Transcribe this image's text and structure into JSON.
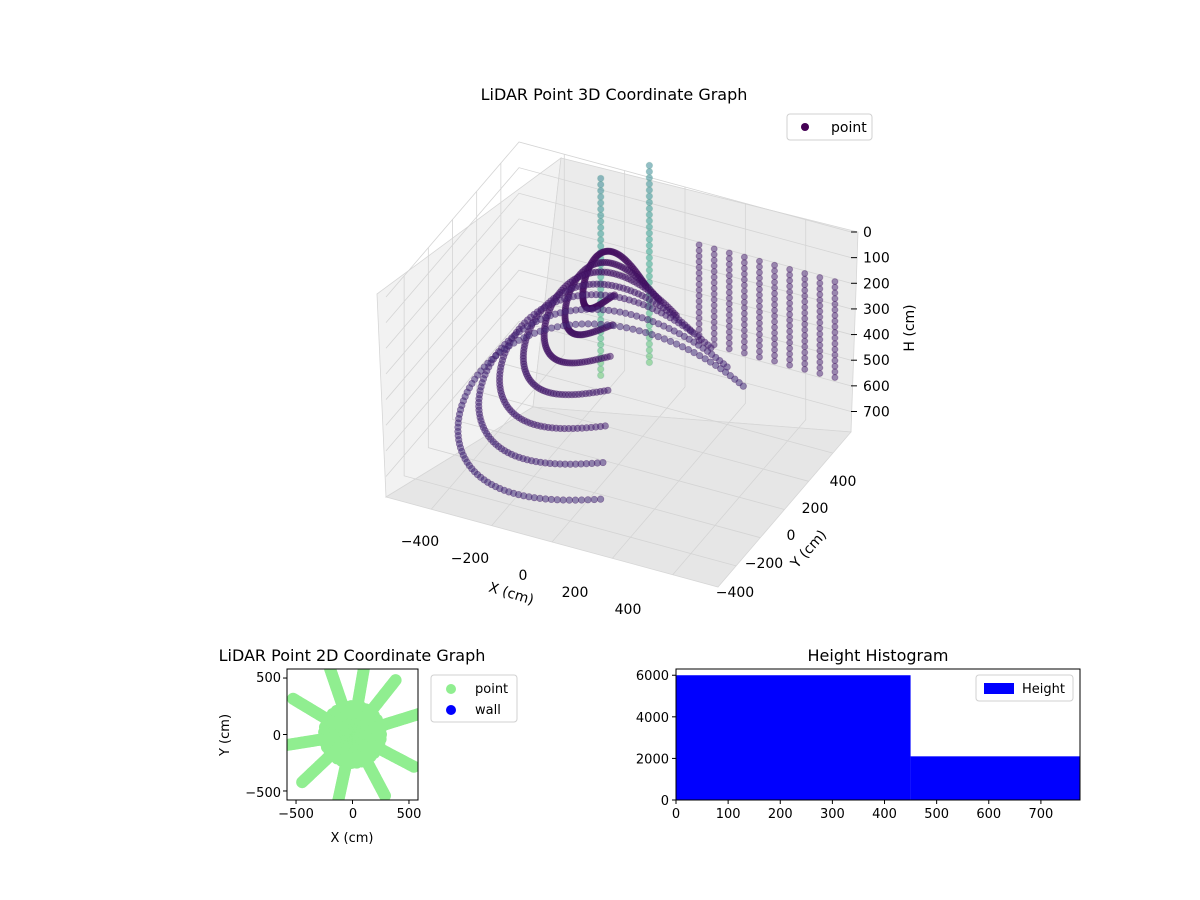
{
  "figure": {
    "legend_point_color": "#440154",
    "scatter2d_point_color": "#90ee90",
    "scatter2d_wall_color": "#0000ff",
    "hist_color": "#0000ff"
  },
  "chart_data": [
    {
      "type": "scatter",
      "projection": "3d",
      "title": "LiDAR Point 3D Coordinate Graph",
      "xlabel": "X (cm)",
      "ylabel": "Y (cm)",
      "zlabel": "H (cm)",
      "xticks": [
        "−400",
        "−200",
        "0",
        "200",
        "400"
      ],
      "yticks": [
        "−400",
        "−200",
        "0",
        "200",
        "400"
      ],
      "zticks": [
        "0",
        "100",
        "200",
        "300",
        "400",
        "500",
        "600",
        "700"
      ],
      "xlim": [
        -550,
        550
      ],
      "ylim": [
        -550,
        550
      ],
      "zlim": [
        0,
        780
      ],
      "zaxis_inverted": true,
      "legend": [
        "point"
      ],
      "colormap": "viridis",
      "description_of_structure": "concentric ring sweeps around origin at increasing radius and height",
      "ring_radii_cm": [
        120,
        180,
        250,
        320,
        400,
        470,
        540
      ],
      "ring_height_cm": [
        80,
        160,
        240,
        330,
        420,
        520,
        620
      ]
    },
    {
      "type": "scatter",
      "title": "LiDAR Point 2D Coordinate Graph",
      "xlabel": "X (cm)",
      "ylabel": "Y (cm)",
      "xticks": [
        "−500",
        "0",
        "500"
      ],
      "yticks": [
        "−500",
        "0",
        "500"
      ],
      "xlim": [
        -580,
        580
      ],
      "ylim": [
        -580,
        580
      ],
      "legend": [
        "point",
        "wall"
      ],
      "series": [
        {
          "name": "point",
          "color": "#90ee90"
        },
        {
          "name": "wall",
          "color": "#0000ff"
        }
      ]
    },
    {
      "type": "bar",
      "title": "Height Histogram",
      "legend": [
        "Height"
      ],
      "xticks": [
        "0",
        "100",
        "200",
        "300",
        "400",
        "500",
        "600",
        "700"
      ],
      "yticks": [
        "0",
        "2000",
        "4000",
        "6000"
      ],
      "xlim": [
        0,
        775
      ],
      "ylim": [
        0,
        6300
      ],
      "bins": [
        {
          "from": 0,
          "to": 450,
          "count": 6000
        },
        {
          "from": 450,
          "to": 775,
          "count": 2100
        }
      ]
    }
  ]
}
